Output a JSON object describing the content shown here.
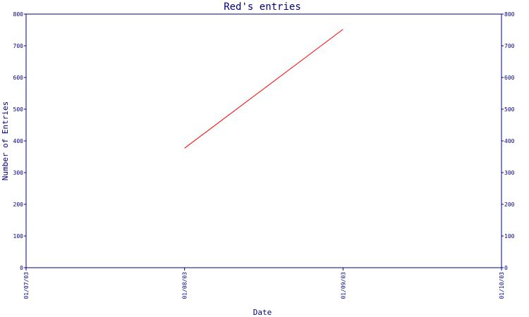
{
  "chart_data": {
    "type": "line",
    "title": "Red's entries",
    "xlabel": "Date",
    "ylabel": "Number of Entries",
    "x_ticks": [
      "01/07/03",
      "01/08/03",
      "01/09/03",
      "01/10/03"
    ],
    "xlim": [
      "01/07/03",
      "01/10/03"
    ],
    "ylim": [
      0,
      800
    ],
    "y_ticks": [
      0,
      100,
      200,
      300,
      400,
      500,
      600,
      700,
      800
    ],
    "right_axis_ticks": true,
    "grid": false,
    "series": [
      {
        "color": "#ff0000",
        "points": [
          {
            "x": "01/08/03",
            "y": 377
          },
          {
            "x": "01/09/03",
            "y": 752
          }
        ]
      }
    ]
  },
  "colors": {
    "axis": "#00007f",
    "series": "#ff0000",
    "background": "#ffffff"
  }
}
